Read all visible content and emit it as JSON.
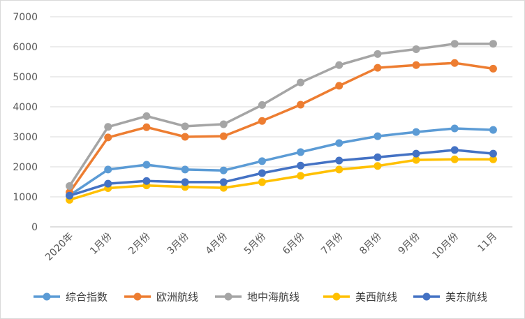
{
  "chart_data": {
    "type": "line",
    "title": "",
    "xlabel": "",
    "ylabel": "",
    "ylim": [
      0,
      7000
    ],
    "yticks": [
      0,
      1000,
      2000,
      3000,
      4000,
      5000,
      6000,
      7000
    ],
    "grid": true,
    "legend_position": "bottom",
    "categories": [
      "2020年",
      "1月份",
      "2月份",
      "3月份",
      "4月份",
      "5月份",
      "6月份",
      "7月份",
      "8月份",
      "9月份",
      "10月份",
      "11月"
    ],
    "series": [
      {
        "name": "综合指数",
        "color": "#5B9BD5",
        "values": [
          1050,
          1910,
          2070,
          1910,
          1880,
          2190,
          2490,
          2790,
          3020,
          3160,
          3280,
          3230
        ]
      },
      {
        "name": "欧洲航线",
        "color": "#ED7D31",
        "values": [
          1150,
          2980,
          3320,
          3000,
          3020,
          3530,
          4070,
          4700,
          5300,
          5390,
          5460,
          5270
        ]
      },
      {
        "name": "地中海航线",
        "color": "#A5A5A5",
        "values": [
          1360,
          3330,
          3690,
          3350,
          3420,
          4060,
          4810,
          5390,
          5760,
          5920,
          6100,
          6100
        ]
      },
      {
        "name": "美西航线",
        "color": "#FFC000",
        "values": [
          900,
          1290,
          1380,
          1330,
          1300,
          1490,
          1700,
          1910,
          2030,
          2230,
          2250,
          2250
        ]
      },
      {
        "name": "美东航线",
        "color": "#4472C4",
        "values": [
          1040,
          1440,
          1530,
          1490,
          1490,
          1790,
          2040,
          2210,
          2320,
          2440,
          2560,
          2440
        ]
      }
    ]
  }
}
